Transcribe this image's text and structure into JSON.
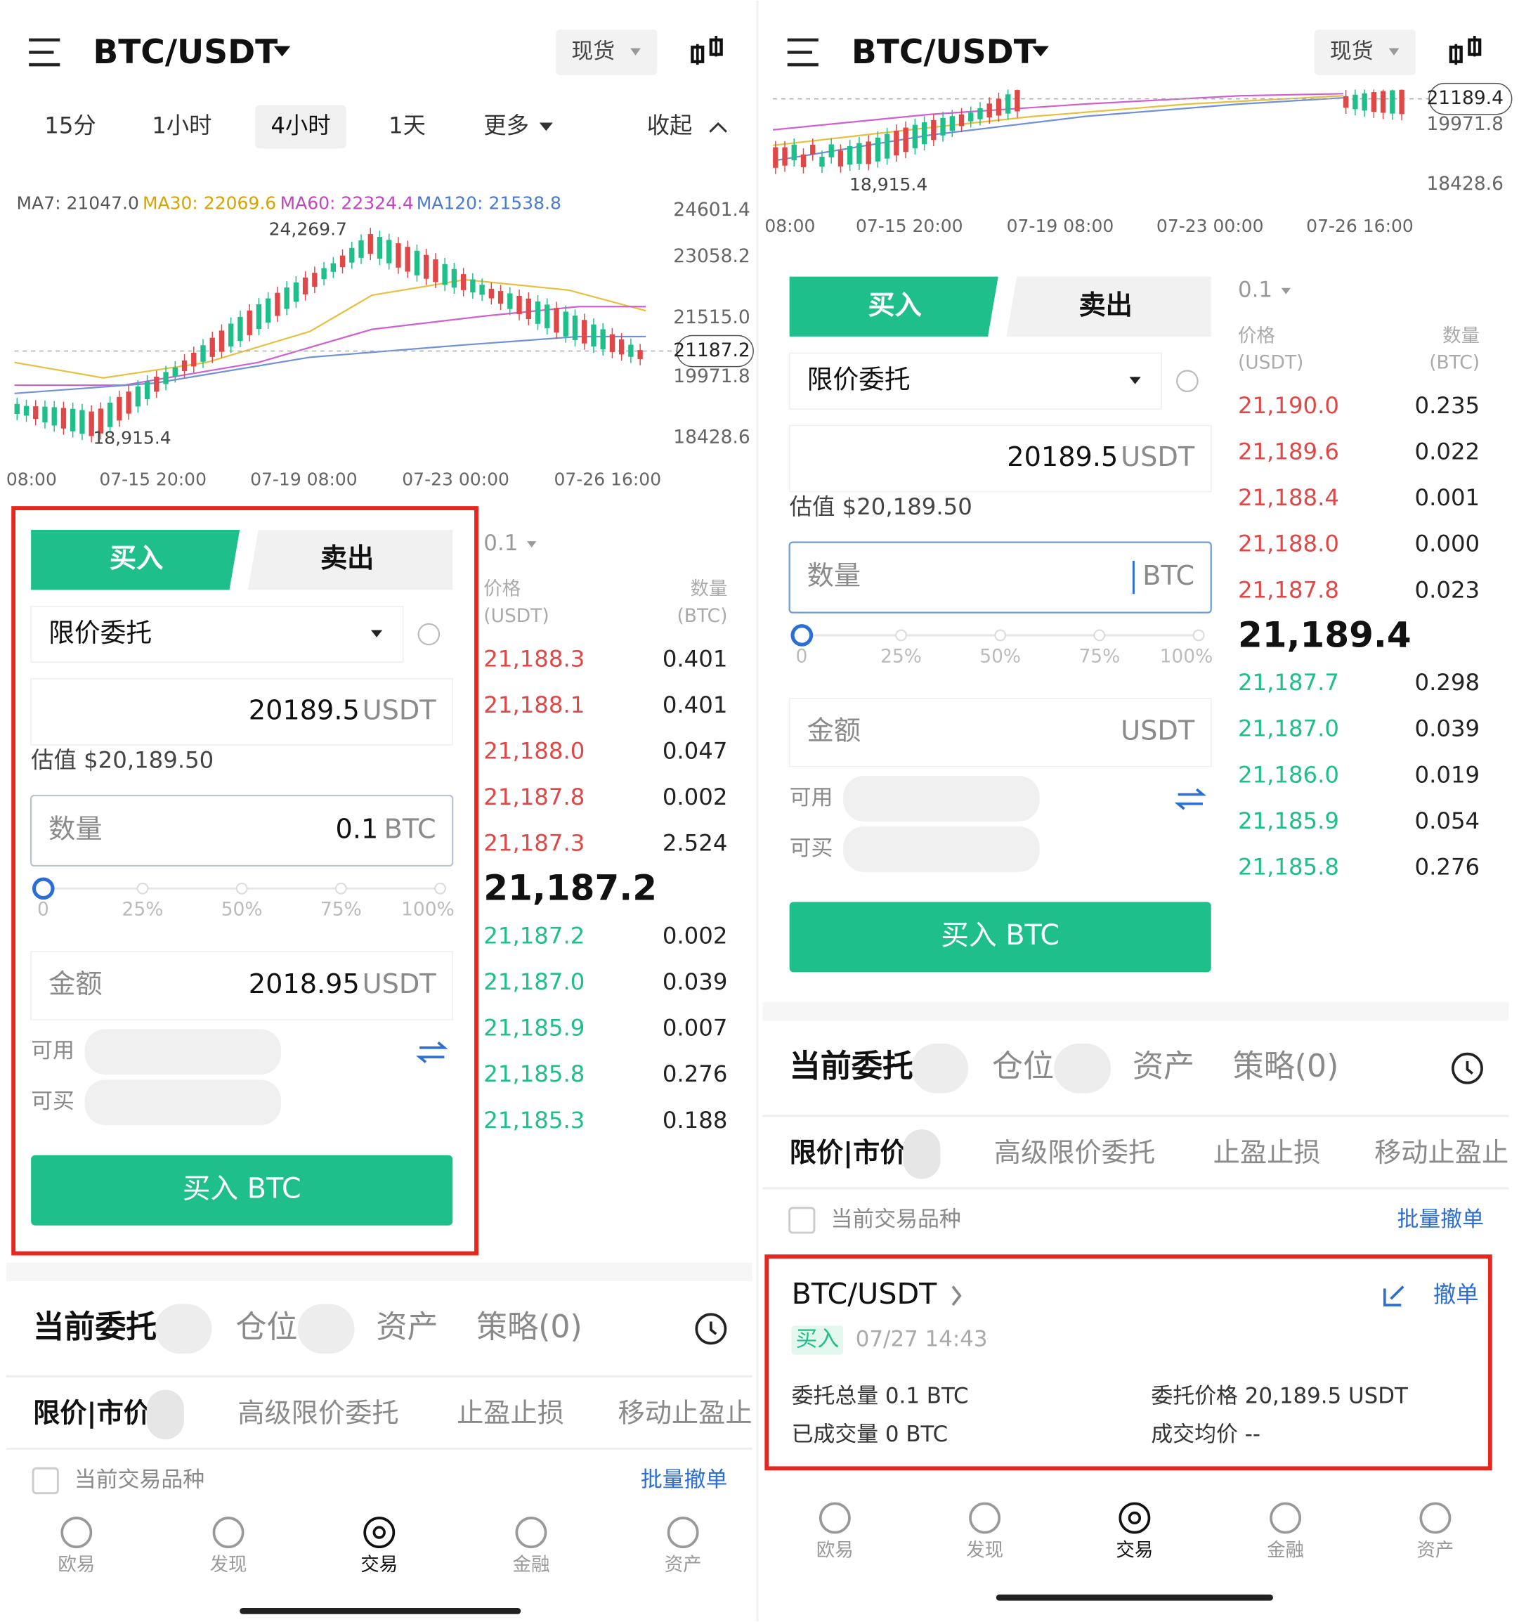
{
  "left": {
    "header": {
      "pair": "BTC/USDT",
      "market": "现货"
    },
    "intervals": [
      "15分",
      "1小时",
      "4小时",
      "1天",
      "更多",
      "收起"
    ],
    "ma": [
      "MA7: 21047.0",
      "MA30: 22069.6",
      "MA60: 22324.4",
      "MA120: 21538.8"
    ],
    "chart_prices": [
      "24601.4",
      "23058.2",
      "21515.0",
      "21187.2",
      "19971.8",
      "18428.6"
    ],
    "high_label": "24,269.7",
    "low_label": "18,915.4",
    "times": [
      "08:00",
      "07-15 20:00",
      "07-19 08:00",
      "07-23 00:00",
      "07-26 16:00"
    ],
    "form": {
      "tabs": [
        "买入",
        "卖出"
      ],
      "order_type": "限价委托",
      "price": "20189.5",
      "price_unit": "USDT",
      "estimate": "估值 $20,189.50",
      "qty_label": "数量",
      "qty": "0.1",
      "qty_unit": "BTC",
      "slider": [
        "0",
        "25%",
        "50%",
        "75%",
        "100%"
      ],
      "amount_label": "金额",
      "amount": "2018.95",
      "amount_unit": "USDT",
      "avail": "可用",
      "can_buy": "可买",
      "submit": "买入 BTC"
    },
    "book": {
      "step": "0.1",
      "price_head": [
        "价格",
        "(USDT)"
      ],
      "qty_head": [
        "数量",
        "(BTC)"
      ],
      "asks": [
        [
          "21,188.3",
          "0.401"
        ],
        [
          "21,188.1",
          "0.401"
        ],
        [
          "21,188.0",
          "0.047"
        ],
        [
          "21,187.8",
          "0.002"
        ],
        [
          "21,187.3",
          "2.524"
        ]
      ],
      "last": "21,187.2",
      "bids": [
        [
          "21,187.2",
          "0.002"
        ],
        [
          "21,187.0",
          "0.039"
        ],
        [
          "21,185.9",
          "0.007"
        ],
        [
          "21,185.8",
          "0.276"
        ],
        [
          "21,185.3",
          "0.188"
        ]
      ]
    },
    "orders": {
      "tabs": [
        "当前委托",
        "仓位",
        "资产",
        "策略(0)"
      ],
      "sub_tabs": [
        "限价|市价",
        "高级限价委托",
        "止盈止损",
        "移动止盈止"
      ],
      "filter": "当前交易品种",
      "cancel_all": "批量撤单"
    },
    "nav": [
      "欧易",
      "发现",
      "交易",
      "金融",
      "资产"
    ]
  },
  "right": {
    "header": {
      "pair": "BTC/USDT",
      "market": "现货"
    },
    "chart_prices": [
      "21189.4",
      "19971.8",
      "18428.6"
    ],
    "low_label": "18,915.4",
    "times": [
      "08:00",
      "07-15 20:00",
      "07-19 08:00",
      "07-23 00:00",
      "07-26 16:00"
    ],
    "form": {
      "tabs": [
        "买入",
        "卖出"
      ],
      "order_type": "限价委托",
      "price": "20189.5",
      "price_unit": "USDT",
      "estimate": "估值 $20,189.50",
      "qty_label": "数量",
      "qty_unit": "BTC",
      "slider": [
        "0",
        "25%",
        "50%",
        "75%",
        "100%"
      ],
      "amount_label": "金额",
      "amount_unit": "USDT",
      "avail": "可用",
      "can_buy": "可买",
      "submit": "买入 BTC"
    },
    "book": {
      "step": "0.1",
      "price_head": [
        "价格",
        "(USDT)"
      ],
      "qty_head": [
        "数量",
        "(BTC)"
      ],
      "asks": [
        [
          "21,190.0",
          "0.235"
        ],
        [
          "21,189.6",
          "0.022"
        ],
        [
          "21,188.4",
          "0.001"
        ],
        [
          "21,188.0",
          "0.000"
        ],
        [
          "21,187.8",
          "0.023"
        ]
      ],
      "last": "21,189.4",
      "bids": [
        [
          "21,187.7",
          "0.298"
        ],
        [
          "21,187.0",
          "0.039"
        ],
        [
          "21,186.0",
          "0.019"
        ],
        [
          "21,185.9",
          "0.054"
        ],
        [
          "21,185.8",
          "0.276"
        ]
      ]
    },
    "orders": {
      "tabs": [
        "当前委托",
        "仓位",
        "资产",
        "策略(0)"
      ],
      "sub_tabs": [
        "限价|市价",
        "高级限价委托",
        "止盈止损",
        "移动止盈止"
      ],
      "filter": "当前交易品种",
      "cancel_all": "批量撤单"
    },
    "order_card": {
      "pair": "BTC/USDT",
      "side": "买入",
      "time": "07/27 14:43",
      "total": "委托总量 0.1 BTC",
      "price": "委托价格 20,189.5 USDT",
      "filled": "已成交量 0 BTC",
      "avg": "成交均价 --",
      "cancel": "撤单"
    },
    "nav": [
      "欧易",
      "发现",
      "交易",
      "金融",
      "资产"
    ]
  }
}
